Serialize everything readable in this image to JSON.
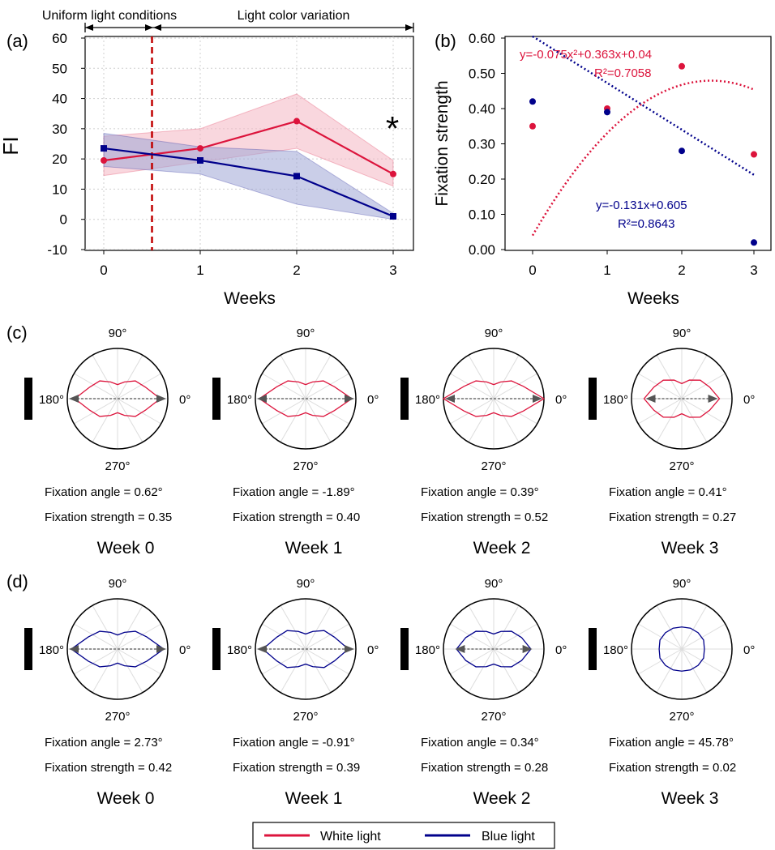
{
  "colors": {
    "white_light": "#dc143c",
    "blue_light": "#00008b",
    "white_band": "#f4b6c2",
    "blue_band": "#9ea6d6",
    "divider": "#c00000",
    "arrow": "#555555"
  },
  "panel_a": {
    "label": "(a)",
    "phase_left": "Uniform light conditions",
    "phase_right": "Light color variation",
    "star": "*",
    "chart_data": {
      "type": "line",
      "x": [
        0,
        1,
        2,
        3
      ],
      "xlabel": "Weeks",
      "ylabel": "FI",
      "xticks": [
        "0",
        "1",
        "2",
        "3"
      ],
      "yticks": [
        "-10",
        "0",
        "10",
        "20",
        "30",
        "40",
        "50",
        "60"
      ],
      "ylim": [
        -10,
        60
      ],
      "grid": true,
      "divider_x": 0.5,
      "series": [
        {
          "name": "White light",
          "values": [
            19.5,
            23.5,
            32.5,
            15
          ],
          "band_low": [
            14.5,
            19,
            23.5,
            11
          ],
          "band_high": [
            27.5,
            30,
            41.5,
            19.5
          ]
        },
        {
          "name": "Blue light",
          "values": [
            23.5,
            19.5,
            14.3,
            1
          ],
          "band_low": [
            17.5,
            15,
            5,
            0
          ],
          "band_high": [
            28.5,
            24,
            22.5,
            2
          ]
        }
      ]
    }
  },
  "panel_b": {
    "label": "(b)",
    "chart_data": {
      "type": "scatter",
      "x": [
        0,
        1,
        2,
        3
      ],
      "xlabel": "Weeks",
      "ylabel": "Fixation strength",
      "xticks": [
        "0",
        "1",
        "2",
        "3"
      ],
      "yticks": [
        "0.00",
        "0.10",
        "0.20",
        "0.30",
        "0.40",
        "0.50",
        "0.60"
      ],
      "ylim": [
        0,
        0.6
      ],
      "series": [
        {
          "name": "White light",
          "values": [
            0.35,
            0.4,
            0.52,
            0.27
          ],
          "fit": {
            "type": "poly2",
            "coef": [
              -0.075,
              0.363,
              0.04
            ],
            "equation": "y=-0.075x²+0.363x+0.04",
            "r2": "R²=0.7058"
          }
        },
        {
          "name": "Blue light",
          "values": [
            0.42,
            0.39,
            0.28,
            0.02
          ],
          "fit": {
            "type": "linear",
            "coef": [
              -0.131,
              0.605
            ],
            "equation": "y=-0.131x+0.605",
            "r2": "R²=0.8643"
          }
        }
      ]
    }
  },
  "panel_c": {
    "label": "(c)",
    "angle_labels": {
      "top": "90°",
      "left": "180°",
      "right": "0°",
      "bottom": "270°"
    },
    "polars": [
      {
        "week": "Week 0",
        "angle_text": "Fixation angle = 0.62°",
        "strength_text": "Fixation strength = 0.35",
        "radii": [
          0.85,
          0.6,
          0.5,
          0.36,
          0.28,
          0.36,
          0.5,
          0.6,
          0.85,
          0.6,
          0.5,
          0.36,
          0.28,
          0.36,
          0.5,
          0.6
        ],
        "arrow": 1
      },
      {
        "week": "Week 1",
        "angle_text": "Fixation angle = -1.89°",
        "strength_text": "Fixation strength = 0.40",
        "radii": [
          0.92,
          0.62,
          0.5,
          0.36,
          0.28,
          0.36,
          0.5,
          0.62,
          0.92,
          0.62,
          0.5,
          0.36,
          0.28,
          0.36,
          0.5,
          0.62
        ],
        "arrow": 1
      },
      {
        "week": "Week 2",
        "angle_text": "Fixation angle = 0.39°",
        "strength_text": "Fixation strength = 0.52",
        "radii": [
          1.0,
          0.64,
          0.5,
          0.36,
          0.28,
          0.36,
          0.5,
          0.64,
          1.0,
          0.64,
          0.5,
          0.36,
          0.28,
          0.36,
          0.5,
          0.64
        ],
        "arrow": 1
      },
      {
        "week": "Week 3",
        "angle_text": "Fixation angle = 0.41°",
        "strength_text": "Fixation strength = 0.27",
        "radii": [
          0.75,
          0.6,
          0.52,
          0.4,
          0.3,
          0.4,
          0.52,
          0.6,
          0.75,
          0.6,
          0.52,
          0.4,
          0.3,
          0.4,
          0.52,
          0.6
        ],
        "arrow": 0.75
      }
    ]
  },
  "panel_d": {
    "label": "(d)",
    "angle_labels": {
      "top": "90°",
      "left": "180°",
      "right": "0°",
      "bottom": "270°"
    },
    "polars": [
      {
        "week": "Week 0",
        "angle_text": "Fixation angle = 2.73°",
        "strength_text": "Fixation strength = 0.42",
        "radii": [
          0.92,
          0.63,
          0.5,
          0.36,
          0.28,
          0.36,
          0.5,
          0.63,
          0.92,
          0.63,
          0.5,
          0.36,
          0.28,
          0.36,
          0.5,
          0.63
        ],
        "arrow": 1
      },
      {
        "week": "Week 1",
        "angle_text": "Fixation angle = -0.91°",
        "strength_text": "Fixation strength = 0.39",
        "radii": [
          0.85,
          0.62,
          0.52,
          0.38,
          0.3,
          0.38,
          0.52,
          0.62,
          0.85,
          0.62,
          0.52,
          0.38,
          0.3,
          0.38,
          0.52,
          0.62
        ],
        "arrow": 1
      },
      {
        "week": "Week 2",
        "angle_text": "Fixation angle = 0.34°",
        "strength_text": "Fixation strength = 0.28",
        "radii": [
          0.74,
          0.6,
          0.5,
          0.38,
          0.3,
          0.38,
          0.5,
          0.6,
          0.74,
          0.6,
          0.5,
          0.38,
          0.3,
          0.38,
          0.5,
          0.6
        ],
        "arrow": 0.8
      },
      {
        "week": "Week 3",
        "angle_text": "Fixation angle = 45.78°",
        "strength_text": "Fixation strength = 0.02",
        "radii": [
          0.45,
          0.47,
          0.46,
          0.45,
          0.44,
          0.45,
          0.46,
          0.47,
          0.45,
          0.47,
          0.46,
          0.45,
          0.44,
          0.45,
          0.46,
          0.47
        ],
        "arrow": 0
      }
    ]
  },
  "legend": {
    "items": [
      {
        "label": "White light"
      },
      {
        "label": "Blue light"
      }
    ]
  }
}
